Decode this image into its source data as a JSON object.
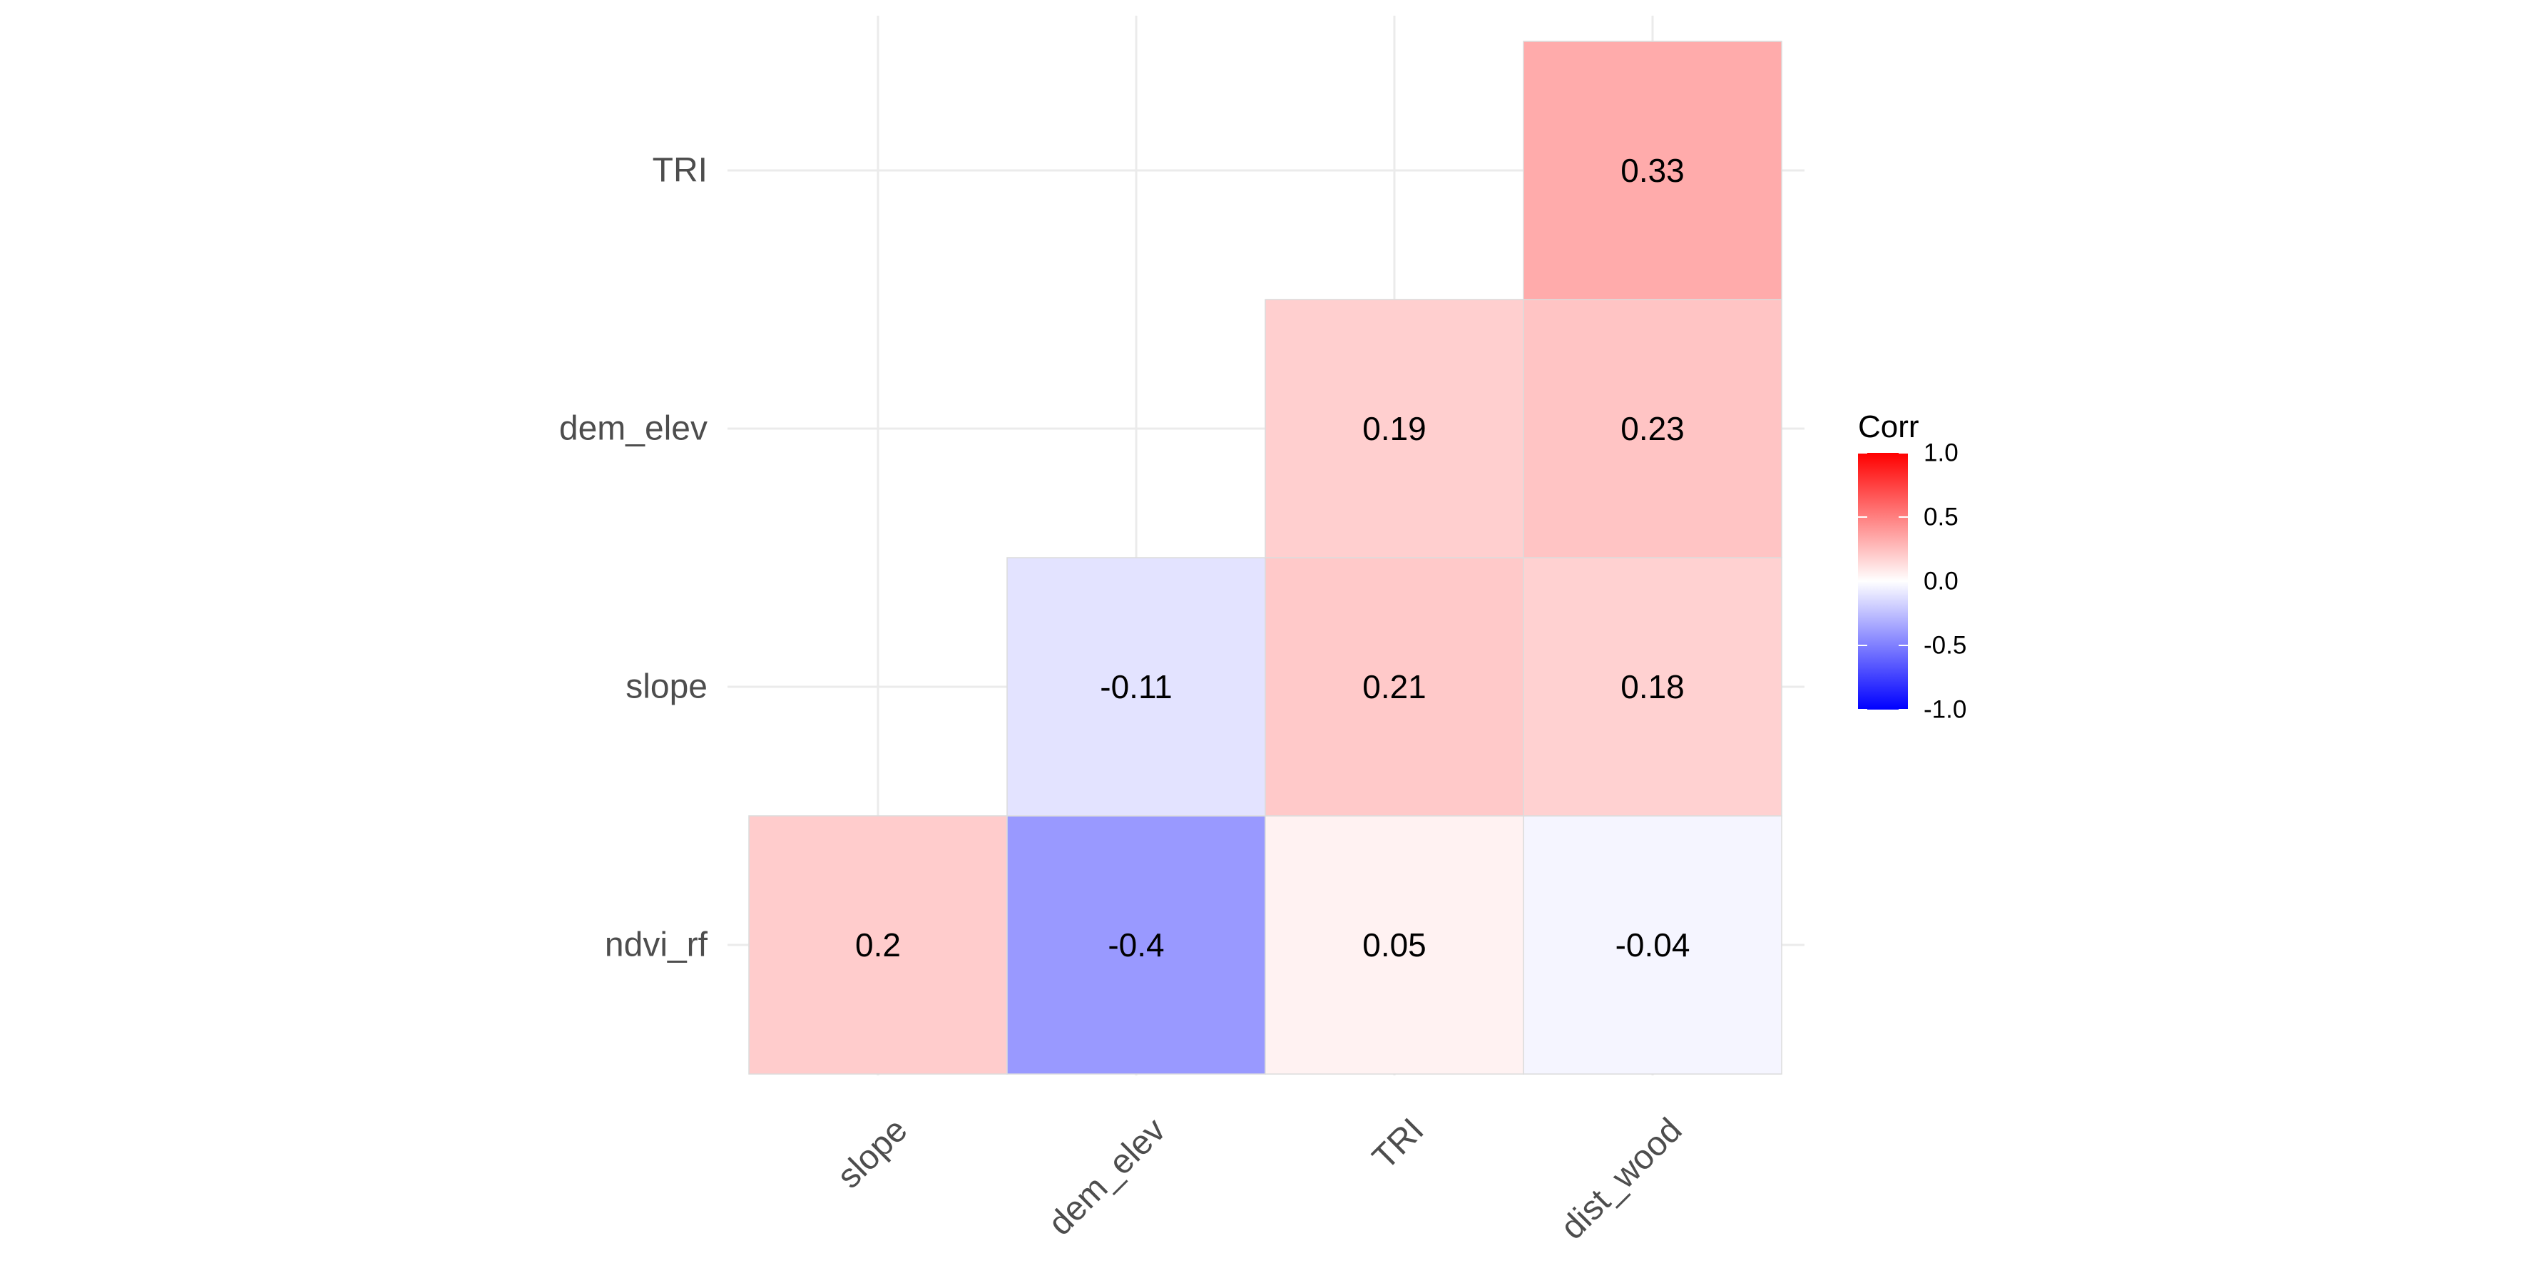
{
  "chart_data": {
    "type": "heatmap",
    "x_categories": [
      "slope",
      "dem_elev",
      "TRI",
      "dist_wood"
    ],
    "y_categories": [
      "ndvi_rf",
      "slope",
      "dem_elev",
      "TRI"
    ],
    "cells": [
      {
        "x": "slope",
        "y": "ndvi_rf",
        "value": 0.2,
        "label": "0.2"
      },
      {
        "x": "dem_elev",
        "y": "ndvi_rf",
        "value": -0.4,
        "label": "-0.4"
      },
      {
        "x": "TRI",
        "y": "ndvi_rf",
        "value": 0.05,
        "label": "0.05"
      },
      {
        "x": "dist_wood",
        "y": "ndvi_rf",
        "value": -0.04,
        "label": "-0.04"
      },
      {
        "x": "dem_elev",
        "y": "slope",
        "value": -0.11,
        "label": "-0.11"
      },
      {
        "x": "TRI",
        "y": "slope",
        "value": 0.21,
        "label": "0.21"
      },
      {
        "x": "dist_wood",
        "y": "slope",
        "value": 0.18,
        "label": "0.18"
      },
      {
        "x": "TRI",
        "y": "dem_elev",
        "value": 0.19,
        "label": "0.19"
      },
      {
        "x": "dist_wood",
        "y": "dem_elev",
        "value": 0.23,
        "label": "0.23"
      },
      {
        "x": "dist_wood",
        "y": "TRI",
        "value": 0.33,
        "label": "0.33"
      }
    ],
    "title": "",
    "xlabel": "",
    "ylabel": "",
    "grid": true,
    "legend": {
      "title": "Corr",
      "position": "right",
      "range": [
        -1.0,
        1.0
      ],
      "ticks": [
        {
          "value": 1.0,
          "label": "1.0"
        },
        {
          "value": 0.5,
          "label": "0.5"
        },
        {
          "value": 0.0,
          "label": "0.0"
        },
        {
          "value": -0.5,
          "label": "-0.5"
        },
        {
          "value": -1.0,
          "label": "-1.0"
        }
      ]
    },
    "colors": {
      "low": "#0000ff",
      "mid": "#ffffff",
      "high": "#ff0000"
    }
  }
}
